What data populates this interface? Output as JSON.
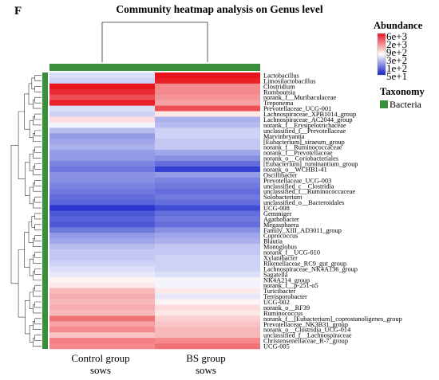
{
  "panel_letter": "F",
  "chart_data": {
    "type": "heatmap",
    "title": "Community heatmap analysis on Genus level",
    "columns": [
      {
        "label_line1": "Control group",
        "label_line2": "sows"
      },
      {
        "label_line1": "BS group",
        "label_line2": "sows"
      }
    ],
    "column_annotation": {
      "name": "Taxonomy",
      "value": "Bacteria",
      "color": "#3a8f3a"
    },
    "legend": {
      "title": "Abundance",
      "ticks": [
        "6e+3",
        "2e+3",
        "9e+2",
        "3e+2",
        "1e+2",
        "5e+1"
      ],
      "high_color": "#e8141b",
      "mid_color": "#ffffff",
      "low_color": "#1020c8"
    },
    "row_dendrogram": true,
    "col_dendrogram": true,
    "rows": [
      {
        "genus": "Lactobacillus",
        "values": [
          -0.3,
          2.0
        ]
      },
      {
        "genus": "Limosilactobacillus",
        "values": [
          -0.4,
          1.9
        ]
      },
      {
        "genus": "Clostridium",
        "values": [
          2.0,
          1.0
        ]
      },
      {
        "genus": "Romboutsia",
        "values": [
          1.8,
          1.0
        ]
      },
      {
        "genus": "norank_f__Muribaculaceae",
        "values": [
          1.5,
          0.9
        ]
      },
      {
        "genus": "Treponema",
        "values": [
          1.9,
          0.8
        ]
      },
      {
        "genus": "Prevotellaceae_UCG-001",
        "values": [
          -0.3,
          1.5
        ]
      },
      {
        "genus": "Lachnospiraceae_XPB1014_group",
        "values": [
          -0.4,
          0.2
        ]
      },
      {
        "genus": "Lachnospiraceae_AC2044_group",
        "values": [
          0.3,
          -0.7
        ]
      },
      {
        "genus": "norank_f__Erysipelotrichaceae",
        "values": [
          -0.1,
          -0.6
        ]
      },
      {
        "genus": "unclassified_f__Prevotellaceae",
        "values": [
          -0.6,
          -0.4
        ]
      },
      {
        "genus": "Marvinbryantia",
        "values": [
          -0.9,
          -0.4
        ]
      },
      {
        "genus": "[Eubacterium]_siraeum_group",
        "values": [
          -0.8,
          -0.5
        ]
      },
      {
        "genus": "norank_f__Ruminococcaceae",
        "values": [
          -0.7,
          -0.5
        ]
      },
      {
        "genus": "norank_f__Prevotellaceae",
        "values": [
          -0.9,
          -0.8
        ]
      },
      {
        "genus": "norank_o__Coriobacteriales",
        "values": [
          -0.9,
          -1.0
        ]
      },
      {
        "genus": "[Eubacterium]_ruminantium_group",
        "values": [
          -1.1,
          -1.3
        ]
      },
      {
        "genus": "norank_o__WCHB1-41",
        "values": [
          -1.2,
          -1.7
        ]
      },
      {
        "genus": "Oscillibacter",
        "values": [
          -1.0,
          -0.9
        ]
      },
      {
        "genus": "Prevotellaceae_UCG-003",
        "values": [
          -1.0,
          -1.1
        ]
      },
      {
        "genus": "unclassified_c__Clostridia",
        "values": [
          -1.1,
          -1.2
        ]
      },
      {
        "genus": "unclassified_f__Ruminococcaceae",
        "values": [
          -1.2,
          -1.3
        ]
      },
      {
        "genus": "Solobacterium",
        "values": [
          -1.3,
          -1.2
        ]
      },
      {
        "genus": "unclassified_o__Bacteroidales",
        "values": [
          -1.4,
          -1.3
        ]
      },
      {
        "genus": "UCG-008",
        "values": [
          -1.8,
          -1.6
        ]
      },
      {
        "genus": "Gemmiger",
        "values": [
          -1.5,
          -1.3
        ]
      },
      {
        "genus": "Agathobacter",
        "values": [
          -1.4,
          -1.2
        ]
      },
      {
        "genus": "Megasphaera",
        "values": [
          -1.5,
          -1.3
        ]
      },
      {
        "genus": "Family_XIII_AD3011_group",
        "values": [
          -1.2,
          -1.0
        ]
      },
      {
        "genus": "Coprococcus",
        "values": [
          -0.9,
          -0.8
        ]
      },
      {
        "genus": "Blautia",
        "values": [
          -0.8,
          -0.7
        ]
      },
      {
        "genus": "Monoglobus",
        "values": [
          -0.6,
          -0.5
        ]
      },
      {
        "genus": "norank_f__UCG-010",
        "values": [
          -0.5,
          -0.5
        ]
      },
      {
        "genus": "Xylanibacter",
        "values": [
          -0.5,
          -0.4
        ]
      },
      {
        "genus": "Rikenellaceae_RC9_gut_group",
        "values": [
          -0.4,
          -0.4
        ]
      },
      {
        "genus": "Lachnospiraceae_NK4A136_group",
        "values": [
          -0.3,
          -0.4
        ]
      },
      {
        "genus": "Sagatella",
        "values": [
          -0.2,
          -0.3
        ]
      },
      {
        "genus": "NK4A214_group",
        "values": [
          0.1,
          -0.1
        ]
      },
      {
        "genus": "norank_f__p-251-o5",
        "values": [
          0.2,
          -0.1
        ]
      },
      {
        "genus": "Turicibacter",
        "values": [
          0.6,
          0.2
        ]
      },
      {
        "genus": "Terrisporobacter",
        "values": [
          0.7,
          -0.2
        ]
      },
      {
        "genus": "UCG-002",
        "values": [
          0.6,
          0.1
        ]
      },
      {
        "genus": "norank_o__RF39",
        "values": [
          0.7,
          0.3
        ]
      },
      {
        "genus": "Ruminococcus",
        "values": [
          0.6,
          0.2
        ]
      },
      {
        "genus": "norank_f__[Eubacterium]_coprostanoligenes_group",
        "values": [
          1.2,
          0.4
        ]
      },
      {
        "genus": "Prevotellaceae_NK3B31_group",
        "values": [
          0.8,
          0.5
        ]
      },
      {
        "genus": "norank_o__Clostridia_UCG-014",
        "values": [
          1.0,
          0.6
        ]
      },
      {
        "genus": "unclassified_f__Lachnospiraceae",
        "values": [
          0.5,
          0.6
        ]
      },
      {
        "genus": "Christensenellaceae_R-7_group",
        "values": [
          1.1,
          1.0
        ]
      },
      {
        "genus": "UCG-005",
        "values": [
          1.0,
          1.2
        ]
      }
    ]
  }
}
